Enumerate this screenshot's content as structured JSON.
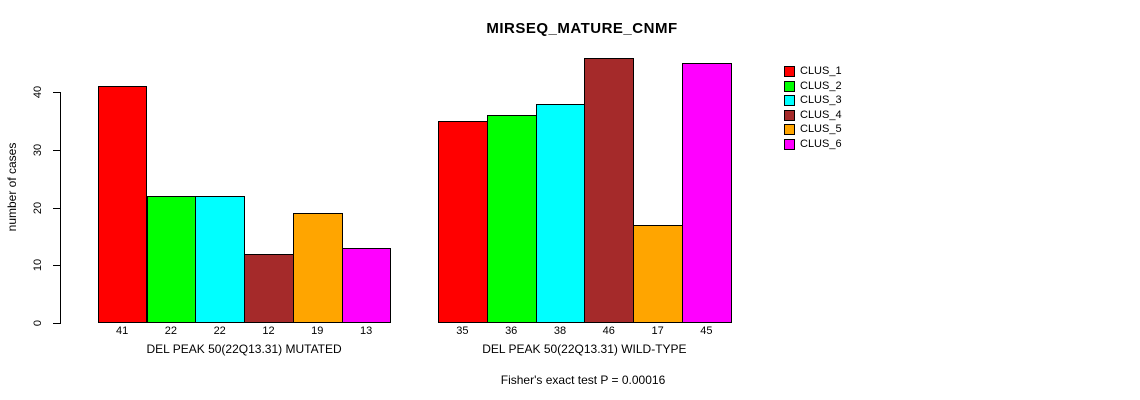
{
  "chart_data": {
    "type": "bar",
    "title": "MIRSEQ_MATURE_CNMF",
    "ylabel": "number of cases",
    "xlabel": "",
    "ylim": [
      0,
      46
    ],
    "yticks": [
      0,
      10,
      20,
      30,
      40
    ],
    "grid": false,
    "legend_position": "right",
    "groups": [
      {
        "label": "DEL PEAK 50(22Q13.31) MUTATED",
        "values": [
          41,
          22,
          22,
          12,
          19,
          13
        ]
      },
      {
        "label": "DEL PEAK 50(22Q13.31) WILD-TYPE",
        "values": [
          35,
          36,
          38,
          46,
          17,
          45
        ]
      }
    ],
    "series": [
      {
        "name": "CLUS_1",
        "color": "#FF0000",
        "values": [
          41,
          35
        ]
      },
      {
        "name": "CLUS_2",
        "color": "#00FF00",
        "values": [
          22,
          36
        ]
      },
      {
        "name": "CLUS_3",
        "color": "#00FFFF",
        "values": [
          22,
          38
        ]
      },
      {
        "name": "CLUS_4",
        "color": "#A52A2A",
        "values": [
          12,
          46
        ]
      },
      {
        "name": "CLUS_5",
        "color": "#FFA500",
        "values": [
          19,
          17
        ]
      },
      {
        "name": "CLUS_6",
        "color": "#FF00FF",
        "values": [
          13,
          45
        ]
      }
    ],
    "bar_value_labels_shown": true,
    "annotation": "Fisher's exact test P = 0.00016",
    "axis_color": "#000000",
    "background_color": "#FFFFFF"
  }
}
